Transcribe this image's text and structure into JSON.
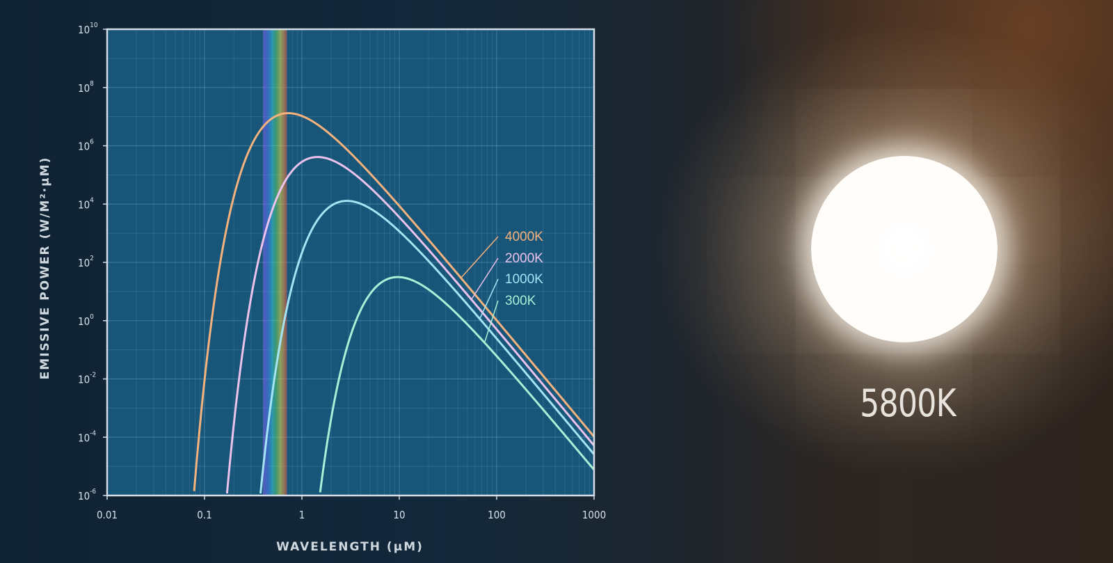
{
  "chart_data": {
    "type": "line",
    "xlabel": "WAVELENGTH (μM)",
    "ylabel": "EMISSIVE POWER (W/M²·μM)",
    "x_scale": "log",
    "y_scale": "log",
    "xlim": [
      0.01,
      1000
    ],
    "ylim": [
      1e-06,
      10000000000.0
    ],
    "x_ticks": [
      {
        "value": 0.01,
        "label": "0.01"
      },
      {
        "value": 0.1,
        "label": "0.1"
      },
      {
        "value": 1,
        "label": "1"
      },
      {
        "value": 10,
        "label": "10"
      },
      {
        "value": 100,
        "label": "100"
      },
      {
        "value": 1000,
        "label": "1000"
      }
    ],
    "y_ticks": [
      {
        "value": 1e-06,
        "base": "10",
        "exp": "-6"
      },
      {
        "value": 0.0001,
        "base": "10",
        "exp": "-4"
      },
      {
        "value": 0.01,
        "base": "10",
        "exp": "-2"
      },
      {
        "value": 1,
        "base": "10",
        "exp": "0"
      },
      {
        "value": 100.0,
        "base": "10",
        "exp": "2"
      },
      {
        "value": 10000.0,
        "base": "10",
        "exp": "4"
      },
      {
        "value": 1000000.0,
        "base": "10",
        "exp": "6"
      },
      {
        "value": 100000000.0,
        "base": "10",
        "exp": "8"
      },
      {
        "value": 10000000000.0,
        "base": "10",
        "exp": "10"
      }
    ],
    "grid": true,
    "visible_band_um": [
      0.4,
      0.7
    ],
    "series": [
      {
        "name": "4000K",
        "temperature_k": 4000,
        "color": "#f6b27c"
      },
      {
        "name": "2000K",
        "temperature_k": 2000,
        "color": "#ebc3ec"
      },
      {
        "name": "1000K",
        "temperature_k": 1000,
        "color": "#a4e4f4"
      },
      {
        "name": "300K",
        "temperature_k": 300,
        "color": "#a6f2d6"
      }
    ]
  },
  "star": {
    "temperature_label": "5800K"
  }
}
